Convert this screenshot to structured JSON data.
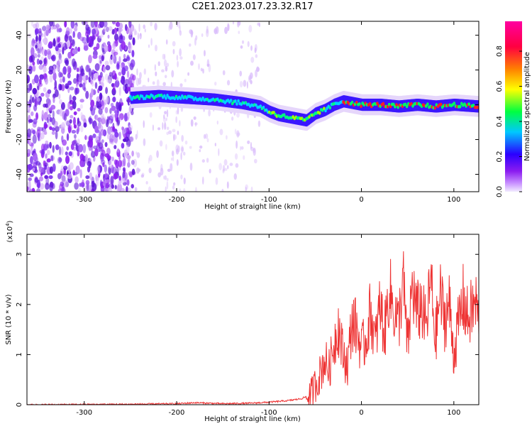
{
  "title": "C2E1.2023.017.23.32.R17",
  "colors": {
    "snr_line": "#ee3333",
    "signal_core": "#ff2020",
    "background_speckle": "#7a2cf0"
  },
  "chart_data": [
    {
      "type": "heatmap",
      "xlabel": "Height of straight line (km)",
      "ylabel": "Frequency (Hz)",
      "xlim": [
        -362,
        127
      ],
      "ylim": [
        -50,
        48
      ],
      "xticks": [
        -300,
        -200,
        -100,
        0,
        100
      ],
      "yticks": [
        -40,
        -20,
        0,
        20,
        40
      ],
      "colorbar": {
        "label": "Normalized spectral amplitude",
        "range": [
          0.0,
          0.97
        ],
        "ticks": [
          0.0,
          0.2,
          0.4,
          0.6,
          0.8
        ],
        "colormap": [
          "#f0e8ff",
          "#8c1cf0",
          "#2a00ff",
          "#00c8ff",
          "#00ff40",
          "#ffff00",
          "#ff8000",
          "#ff0040",
          "#ff00a0"
        ]
      },
      "signal_track": {
        "x": [
          -250,
          -220,
          -190,
          -160,
          -130,
          -110,
          -100,
          -90,
          -80,
          -70,
          -60,
          -50,
          -40,
          -30,
          -20,
          0,
          20,
          40,
          60,
          80,
          100,
          127
        ],
        "y": [
          4,
          5,
          4,
          3,
          1,
          -1,
          -4,
          -6,
          -7,
          -8,
          -9,
          -5,
          -3,
          0,
          2,
          0,
          0,
          -1,
          0,
          -1,
          0,
          -1
        ]
      },
      "noise_region": {
        "x_from": -362,
        "x_to": -245,
        "density": "high"
      },
      "noise_sparse": {
        "x_from": -245,
        "x_to": -110,
        "density": "low"
      }
    },
    {
      "type": "line",
      "xlabel": "Height of straight line (km)",
      "ylabel": "SNR (10 * v/v)",
      "y_exponent_label": "(x10",
      "y_exponent_power": "4",
      "y_exponent_close": ")",
      "xlim": [
        -362,
        127
      ],
      "ylim": [
        0,
        3.4
      ],
      "xticks": [
        -300,
        -200,
        -100,
        0,
        100
      ],
      "yticks": [
        0,
        1,
        2,
        3
      ],
      "series": [
        {
          "x": [
            -362,
            -300,
            -250,
            -200,
            -180,
            -150,
            -120,
            -100,
            -80,
            -65,
            -55,
            -50,
            -45,
            -40,
            -35,
            -30,
            -25,
            -20,
            -15,
            -10,
            -5,
            0,
            5,
            10,
            15,
            20,
            25,
            30,
            35,
            40,
            45,
            50,
            55,
            60,
            65,
            70,
            75,
            80,
            85,
            90,
            95,
            100,
            105,
            110,
            115,
            120,
            125,
            127
          ],
          "y": [
            0.0,
            0.005,
            0.01,
            0.02,
            0.04,
            0.02,
            0.03,
            0.05,
            0.08,
            0.12,
            0.2,
            0.4,
            0.6,
            0.9,
            0.7,
            1.2,
            1.6,
            1.0,
            0.8,
            1.7,
            1.5,
            1.1,
            1.3,
            1.9,
            1.2,
            2.0,
            1.4,
            2.3,
            1.9,
            1.6,
            2.5,
            1.1,
            2.4,
            1.8,
            2.0,
            1.5,
            2.5,
            1.3,
            2.2,
            1.7,
            2.0,
            1.0,
            1.6,
            2.1,
            1.7,
            1.9,
            2.0,
            1.4
          ]
        }
      ]
    }
  ]
}
